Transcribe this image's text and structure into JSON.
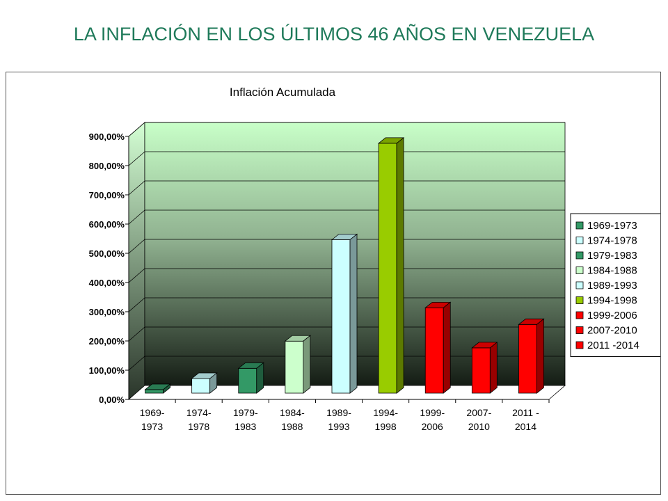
{
  "page": {
    "title": "LA INFLACIÓN EN LOS ÚLTIMOS 46 AÑOS EN VENEZUELA"
  },
  "chart_data": {
    "type": "bar",
    "title": "Inflación Acumulada",
    "xlabel": "",
    "ylabel": "",
    "ylim": [
      0,
      900
    ],
    "yticks": [
      "0,00%",
      "100,00%",
      "200,00%",
      "300,00%",
      "400,00%",
      "500,00%",
      "600,00%",
      "700,00%",
      "800,00%",
      "900,00%"
    ],
    "grid": true,
    "legend_position": "right",
    "categories": [
      [
        "1969-",
        "1973"
      ],
      [
        "1974-",
        "1978"
      ],
      [
        "1979-",
        "1983"
      ],
      [
        "1984-",
        "1988"
      ],
      [
        "1989-",
        "1993"
      ],
      [
        "1994-",
        "1998"
      ],
      [
        "1999-",
        "2006"
      ],
      [
        "2007-",
        "2010"
      ],
      [
        "2011 -",
        "2014"
      ]
    ],
    "legend": [
      "1969-1973",
      "1974-1978",
      "1979-1983",
      "1984-1988",
      "1989-1993",
      "1994-1998",
      "1999-2006",
      "2007-2010",
      "2011 -2014"
    ],
    "values": [
      12,
      50,
      85,
      178,
      525,
      855,
      292,
      155,
      235
    ],
    "colors": [
      "#339966",
      "#ccffff",
      "#339966",
      "#ccffcc",
      "#ccffff",
      "#99cc00",
      "#ff0000",
      "#ff0000",
      "#ff0000"
    ]
  }
}
